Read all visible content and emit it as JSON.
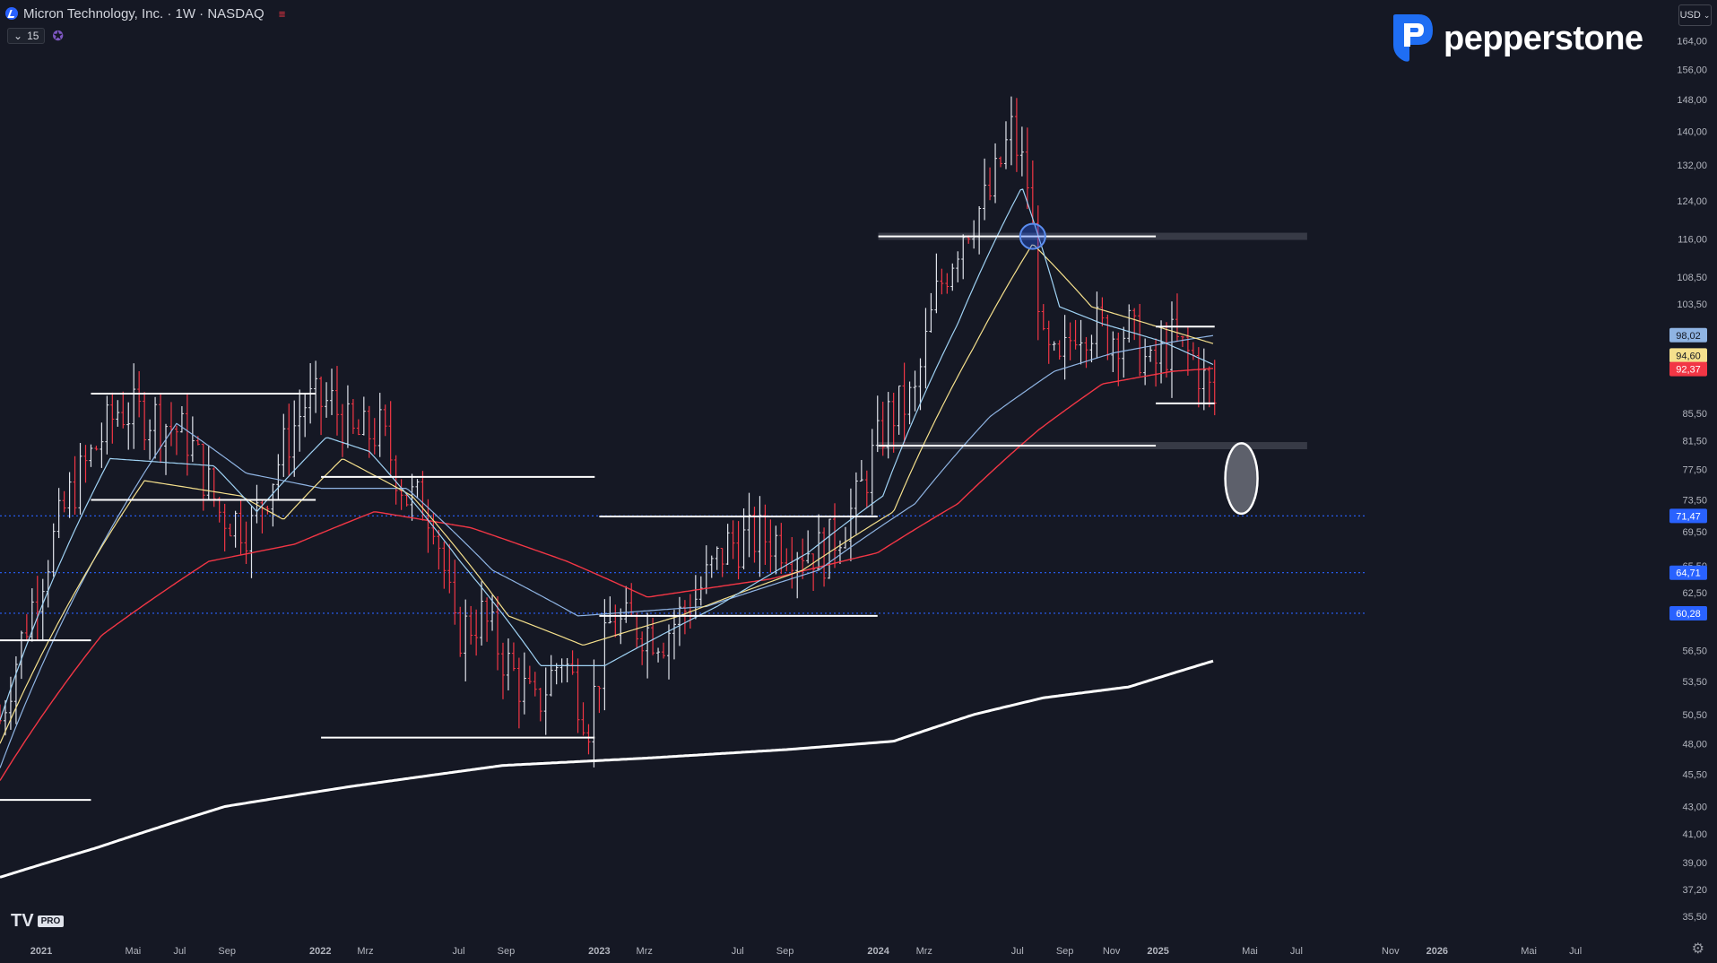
{
  "header": {
    "symbol_title": "Micron Technology, Inc. · 1W · NASDAQ",
    "indicator_count": "15",
    "currency": "USD"
  },
  "brand": {
    "name": "pepperstone"
  },
  "footer": {
    "logo_text": "TV",
    "logo_badge": "PRO"
  },
  "icons": {
    "symbol": "chart-icon",
    "title_menu": "hamburger-icon",
    "chevron": "chevron-down-icon",
    "indicator_settings": "gear-icon",
    "chart_settings": "gear-icon"
  },
  "colors": {
    "background": "#151824",
    "up_candle": "#e0e3eb",
    "down_candle": "#f23645",
    "ema_fast": "#9fd2f4",
    "ema_mid": "#f5e08c",
    "ema_slow": "#f23645",
    "sma_long": "#ffffff",
    "dotted_level": "#2962ff",
    "blue_ma": "#8fb4e3",
    "brand_blue": "#1f6ef3"
  },
  "chart_data": {
    "type": "candlestick",
    "timeframe": "1W",
    "y_scale": "log",
    "x_ticks": [
      "2021",
      "Mai",
      "Jul",
      "Sep",
      "2022",
      "Mrz",
      "Jul",
      "Sep",
      "2023",
      "Mrz",
      "Jul",
      "Sep",
      "2024",
      "Mrz",
      "Jul",
      "Sep",
      "Nov",
      "2025",
      "Mai",
      "Jul",
      "Nov",
      "2026",
      "Mai",
      "Jul"
    ],
    "x_tick_dates": [
      "2021-01-01",
      "2021-05-01",
      "2021-07-01",
      "2021-09-01",
      "2022-01-01",
      "2022-03-01",
      "2022-07-01",
      "2022-09-01",
      "2023-01-01",
      "2023-03-01",
      "2023-07-01",
      "2023-09-01",
      "2024-01-01",
      "2024-03-01",
      "2024-07-01",
      "2024-09-01",
      "2024-11-01",
      "2025-01-01",
      "2025-05-01",
      "2025-07-01",
      "2025-11-01",
      "2026-01-01",
      "2026-05-01",
      "2026-07-01"
    ],
    "y_ticks": [
      "35,50",
      "37,20",
      "39,00",
      "41,00",
      "43,00",
      "45,50",
      "48,00",
      "50,50",
      "53,50",
      "56,50",
      "60,28",
      "62,50",
      "64,71",
      "65,50",
      "69,50",
      "71,47",
      "73,50",
      "77,50",
      "81,50",
      "85,50",
      "92,37",
      "94,60",
      "98,02",
      "103,50",
      "108,50",
      "116,00",
      "124,00",
      "132,00",
      "140,00",
      "148,00",
      "156,00",
      "164,00"
    ],
    "y_tick_values": [
      35.5,
      37.2,
      39.0,
      41.0,
      43.0,
      45.5,
      48.0,
      50.5,
      53.5,
      56.5,
      60.28,
      62.5,
      64.71,
      65.5,
      69.5,
      71.47,
      73.5,
      77.5,
      81.5,
      85.5,
      92.37,
      94.6,
      98.02,
      103.5,
      108.5,
      116,
      124,
      132,
      140,
      148,
      156,
      164
    ],
    "ylim": [
      34.5,
      168
    ],
    "x_range": [
      "2020-11-08",
      "2026-09-01"
    ],
    "price_labels": [
      {
        "text": "98,02",
        "value": 98.02,
        "color": "#8fb4e3"
      },
      {
        "text": "94,60",
        "value": 94.6,
        "color": "#f5e08c"
      },
      {
        "text": "92,37",
        "value": 92.37,
        "color": "#f23645"
      },
      {
        "text": "71,47",
        "value": 71.47,
        "color": "#2962ff"
      },
      {
        "text": "64,71",
        "value": 64.71,
        "color": "#2962ff"
      },
      {
        "text": "60,28",
        "value": 60.28,
        "color": "#2962ff"
      }
    ],
    "dotted_levels": [
      71.47,
      64.71,
      60.28
    ],
    "keypoints": [
      [
        "2020-11-08",
        50
      ],
      [
        "2020-12-27",
        63
      ],
      [
        "2021-02-07",
        74
      ],
      [
        "2021-04-11",
        86
      ],
      [
        "2021-05-30",
        85
      ],
      [
        "2021-07-11",
        82
      ],
      [
        "2021-08-22",
        72
      ],
      [
        "2021-10-03",
        70
      ],
      [
        "2021-11-21",
        82
      ],
      [
        "2021-12-12",
        87
      ],
      [
        "2022-01-16",
        87
      ],
      [
        "2022-02-13",
        82
      ],
      [
        "2022-03-20",
        83
      ],
      [
        "2022-04-24",
        74
      ],
      [
        "2022-05-29",
        72
      ],
      [
        "2022-06-26",
        58
      ],
      [
        "2022-07-31",
        60
      ],
      [
        "2022-09-04",
        55
      ],
      [
        "2022-10-09",
        51
      ],
      [
        "2022-11-13",
        56
      ],
      [
        "2022-12-18",
        50
      ],
      [
        "2023-01-15",
        59
      ],
      [
        "2023-02-19",
        59
      ],
      [
        "2023-03-26",
        58
      ],
      [
        "2023-05-07",
        62
      ],
      [
        "2023-06-18",
        68
      ],
      [
        "2023-07-30",
        69
      ],
      [
        "2023-09-10",
        68
      ],
      [
        "2023-10-22",
        67
      ],
      [
        "2023-12-03",
        73
      ],
      [
        "2024-01-14",
        85
      ],
      [
        "2024-02-18",
        88
      ],
      [
        "2024-03-17",
        105
      ],
      [
        "2024-04-21",
        118
      ],
      [
        "2024-05-26",
        125
      ],
      [
        "2024-06-23",
        140
      ],
      [
        "2024-07-14",
        128
      ],
      [
        "2024-08-04",
        95
      ],
      [
        "2024-08-25",
        92
      ],
      [
        "2024-09-15",
        100
      ],
      [
        "2024-10-06",
        100
      ],
      [
        "2024-10-27",
        98
      ],
      [
        "2024-11-24",
        99
      ],
      [
        "2024-12-22",
        92
      ],
      [
        "2025-01-19",
        97
      ],
      [
        "2025-02-16",
        94
      ],
      [
        "2025-03-16",
        87
      ]
    ],
    "ema_fast_anchors": [
      [
        "2020-11-08",
        50
      ],
      [
        "2021-04-01",
        79
      ],
      [
        "2021-08-15",
        78
      ],
      [
        "2021-10-10",
        72
      ],
      [
        "2022-01-09",
        82
      ],
      [
        "2022-03-06",
        80
      ],
      [
        "2022-07-03",
        66
      ],
      [
        "2022-10-16",
        55
      ],
      [
        "2023-01-08",
        55
      ],
      [
        "2023-06-04",
        61
      ],
      [
        "2023-10-01",
        67
      ],
      [
        "2024-01-07",
        74
      ],
      [
        "2024-04-14",
        100
      ],
      [
        "2024-07-07",
        127
      ],
      [
        "2024-08-25",
        103
      ],
      [
        "2024-10-20",
        100
      ],
      [
        "2025-01-05",
        97
      ],
      [
        "2025-03-16",
        93
      ]
    ],
    "ema_mid_anchors": [
      [
        "2020-11-08",
        48
      ],
      [
        "2021-05-16",
        76
      ],
      [
        "2021-09-19",
        74
      ],
      [
        "2021-11-14",
        71
      ],
      [
        "2022-01-30",
        79
      ],
      [
        "2022-05-01",
        74
      ],
      [
        "2022-09-04",
        60
      ],
      [
        "2022-12-11",
        57
      ],
      [
        "2023-04-16",
        60
      ],
      [
        "2023-09-24",
        65
      ],
      [
        "2024-01-21",
        72
      ],
      [
        "2024-05-05",
        96
      ],
      [
        "2024-07-21",
        115
      ],
      [
        "2024-10-06",
        103
      ],
      [
        "2025-01-12",
        99
      ],
      [
        "2025-03-16",
        96.5
      ]
    ],
    "blue_ma_anchors": [
      [
        "2020-11-08",
        46
      ],
      [
        "2021-06-27",
        84
      ],
      [
        "2021-09-26",
        77
      ],
      [
        "2022-01-02",
        75
      ],
      [
        "2022-04-24",
        75
      ],
      [
        "2022-08-14",
        65
      ],
      [
        "2022-12-04",
        60
      ],
      [
        "2023-05-21",
        61
      ],
      [
        "2023-10-15",
        65
      ],
      [
        "2024-02-18",
        73
      ],
      [
        "2024-05-26",
        85
      ],
      [
        "2024-08-18",
        92
      ],
      [
        "2024-11-03",
        95
      ],
      [
        "2025-01-26",
        97
      ],
      [
        "2025-03-16",
        98
      ]
    ],
    "ema_slow_anchors": [
      [
        "2020-11-08",
        45
      ],
      [
        "2021-03-21",
        58
      ],
      [
        "2021-08-08",
        66
      ],
      [
        "2021-11-28",
        68
      ],
      [
        "2022-03-13",
        72
      ],
      [
        "2022-07-17",
        70
      ],
      [
        "2022-11-20",
        66
      ],
      [
        "2023-03-05",
        62
      ],
      [
        "2023-08-13",
        64
      ],
      [
        "2023-12-31",
        67
      ],
      [
        "2024-04-14",
        73
      ],
      [
        "2024-07-28",
        83
      ],
      [
        "2024-10-20",
        90
      ],
      [
        "2025-01-19",
        92
      ],
      [
        "2025-03-16",
        92.5
      ]
    ],
    "sma_long_anchors": [
      [
        "2020-11-08",
        38
      ],
      [
        "2021-03-14",
        40
      ],
      [
        "2021-08-29",
        43
      ],
      [
        "2022-02-06",
        44.5
      ],
      [
        "2022-08-28",
        46.2
      ],
      [
        "2023-03-05",
        46.8
      ],
      [
        "2023-09-03",
        47.5
      ],
      [
        "2024-01-21",
        48.2
      ],
      [
        "2024-05-05",
        50.5
      ],
      [
        "2024-08-04",
        52
      ],
      [
        "2024-11-24",
        53
      ],
      [
        "2025-03-16",
        55.5
      ]
    ],
    "horizontal_lines": [
      {
        "start": "2020-11-08",
        "end": "2021-03-07",
        "value": 57.5
      },
      {
        "start": "2020-11-08",
        "end": "2021-03-07",
        "value": 43.5
      },
      {
        "start": "2021-03-07",
        "end": "2021-12-26",
        "value": 88.5
      },
      {
        "start": "2021-03-07",
        "end": "2021-12-26",
        "value": 73.5
      },
      {
        "start": "2022-01-02",
        "end": "2022-12-26",
        "value": 76.5
      },
      {
        "start": "2022-01-02",
        "end": "2022-12-26",
        "value": 48.5
      },
      {
        "start": "2023-01-01",
        "end": "2023-12-31",
        "value": 71.4
      },
      {
        "start": "2023-01-01",
        "end": "2023-12-31",
        "value": 60.0
      },
      {
        "start": "2024-01-01",
        "end": "2024-12-29",
        "value": 116.5
      },
      {
        "start": "2024-01-01",
        "end": "2024-12-29",
        "value": 80.8
      },
      {
        "start": "2024-12-29",
        "end": "2025-03-16",
        "value": 99.5
      },
      {
        "start": "2024-12-29",
        "end": "2025-03-16",
        "value": 87.0
      }
    ],
    "zones": [
      {
        "start": "2024-01-01",
        "end": "2025-07-15",
        "value": 116.5
      },
      {
        "start": "2024-01-01",
        "end": "2025-07-15",
        "value": 80.8
      }
    ],
    "circle": {
      "date": "2024-07-21",
      "value": 116.5
    },
    "ellipse": {
      "date": "2025-04-20",
      "center": 76.3,
      "top": 81.2,
      "bottom": 71.8
    }
  }
}
